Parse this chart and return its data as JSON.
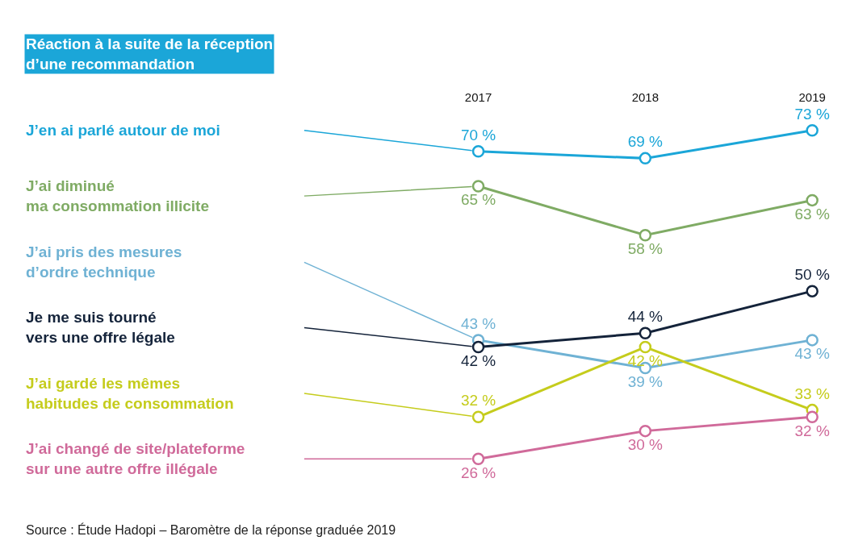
{
  "chart_data": {
    "type": "line",
    "title": "Réaction à la suite de la réception\nd’une recommandation",
    "categories": [
      "2017",
      "2018",
      "2019"
    ],
    "series": [
      {
        "name": "J’en ai parlé autour de moi",
        "color": "#1ba6d8",
        "values": [
          70,
          69,
          73
        ],
        "value_labels": [
          "70 %",
          "69 %",
          "73 %"
        ]
      },
      {
        "name": "J’ai diminué\nma consommation illicite",
        "color": "#7fab64",
        "values": [
          65,
          58,
          63
        ],
        "value_labels": [
          "65 %",
          "58 %",
          "63 %"
        ]
      },
      {
        "name": "J’ai pris des mesures\nd’ordre technique",
        "color": "#6fb2d4",
        "values": [
          43,
          39,
          43
        ],
        "value_labels": [
          "43 %",
          "39 %",
          "43 %"
        ]
      },
      {
        "name": "Je me suis tourné\nvers une offre légale",
        "color": "#14233a",
        "values": [
          42,
          44,
          50
        ],
        "value_labels": [
          "42 %",
          "44 %",
          "50 %"
        ]
      },
      {
        "name": "J’ai gardé les mêmes\nhabitudes de consommation",
        "color": "#c5cc1c",
        "values": [
          32,
          42,
          33
        ],
        "value_labels": [
          "32 %",
          "42 %",
          "33 %"
        ]
      },
      {
        "name": "J’ai changé de site/plateforme\nsur une autre offre illégale",
        "color": "#d06a9a",
        "values": [
          26,
          30,
          32
        ],
        "value_labels": [
          "26 %",
          "30 %",
          "32 %"
        ]
      }
    ],
    "annotations": [
      "Source : Étude Hadopi – Baromètre de la réponse graduée 2019"
    ],
    "marker": "circle",
    "line_style": "solid",
    "legend": false
  }
}
